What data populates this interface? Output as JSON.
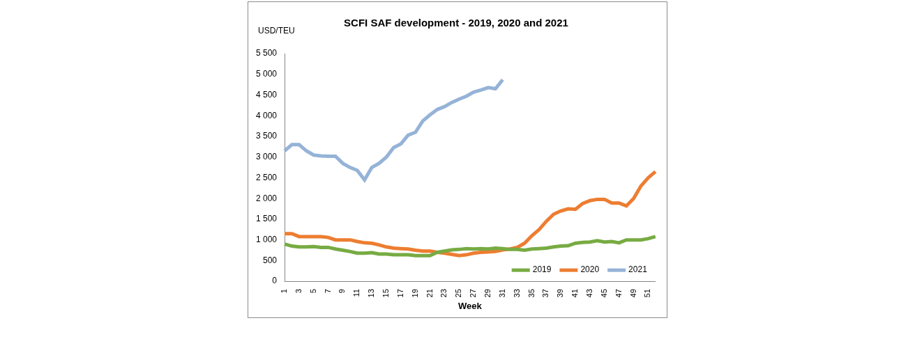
{
  "chart_data": {
    "type": "line",
    "title": "SCFI SAF development - 2019, 2020 and 2021",
    "y_label": "USD/TEU",
    "x_label": "Week",
    "categories": [
      1,
      null,
      3,
      null,
      5,
      null,
      7,
      null,
      9,
      null,
      11,
      null,
      13,
      null,
      15,
      null,
      17,
      null,
      19,
      null,
      21,
      null,
      23,
      null,
      25,
      null,
      27,
      null,
      29,
      null,
      31,
      null,
      33,
      null,
      35,
      null,
      37,
      null,
      39,
      null,
      41,
      null,
      43,
      null,
      45,
      null,
      47,
      null,
      49,
      null,
      51,
      null
    ],
    "series": [
      {
        "name": "2019",
        "color": "#77ab43",
        "values": [
          900,
          850,
          830,
          830,
          840,
          820,
          820,
          780,
          750,
          720,
          680,
          680,
          690,
          660,
          660,
          640,
          640,
          640,
          620,
          620,
          620,
          700,
          730,
          760,
          770,
          790,
          780,
          790,
          780,
          800,
          790,
          770,
          770,
          750,
          780,
          790,
          800,
          830,
          850,
          860,
          920,
          940,
          950,
          980,
          950,
          960,
          930,
          1000,
          1000,
          1000,
          1030,
          1080
        ]
      },
      {
        "name": "2020",
        "color": "#ed7d31",
        "values": [
          1150,
          1150,
          1080,
          1080,
          1080,
          1080,
          1060,
          1000,
          1000,
          1000,
          960,
          930,
          920,
          880,
          830,
          800,
          790,
          780,
          750,
          730,
          730,
          700,
          680,
          650,
          620,
          640,
          680,
          700,
          710,
          720,
          760,
          780,
          820,
          920,
          1100,
          1250,
          1450,
          1620,
          1700,
          1750,
          1740,
          1880,
          1950,
          1980,
          1980,
          1890,
          1890,
          1820,
          2000,
          2300,
          2500,
          2650
        ]
      },
      {
        "name": "2021",
        "color": "#95b3d7",
        "values": [
          3150,
          3300,
          3300,
          3150,
          3050,
          3030,
          3020,
          3020,
          2850,
          2750,
          2680,
          2450,
          2750,
          2850,
          3000,
          3230,
          3320,
          3530,
          3600,
          3870,
          4020,
          4150,
          4220,
          4320,
          4400,
          4470,
          4570,
          4620,
          4680,
          4650,
          4870,
          null,
          null,
          null,
          null,
          null,
          null,
          null,
          null,
          null,
          null,
          null,
          null,
          null,
          null,
          null,
          null,
          null,
          null,
          null,
          null,
          null
        ]
      }
    ],
    "ylim": [
      0,
      5500
    ],
    "yticks": [
      0,
      500,
      {
        "value": 1000,
        "label": "1 000"
      },
      {
        "value": 1500,
        "label": "1 500"
      },
      {
        "value": 2000,
        "label": "2 000"
      },
      {
        "value": 2500,
        "label": "2 500"
      },
      {
        "value": 3000,
        "label": "3 000"
      },
      {
        "value": 3500,
        "label": "3 500"
      },
      {
        "value": 4000,
        "label": "4 000"
      },
      {
        "value": 4500,
        "label": "4 500"
      },
      {
        "value": 5000,
        "label": "5 000"
      },
      {
        "value": 5500,
        "label": "5 500"
      }
    ],
    "grid": false,
    "legend": "lower right"
  }
}
